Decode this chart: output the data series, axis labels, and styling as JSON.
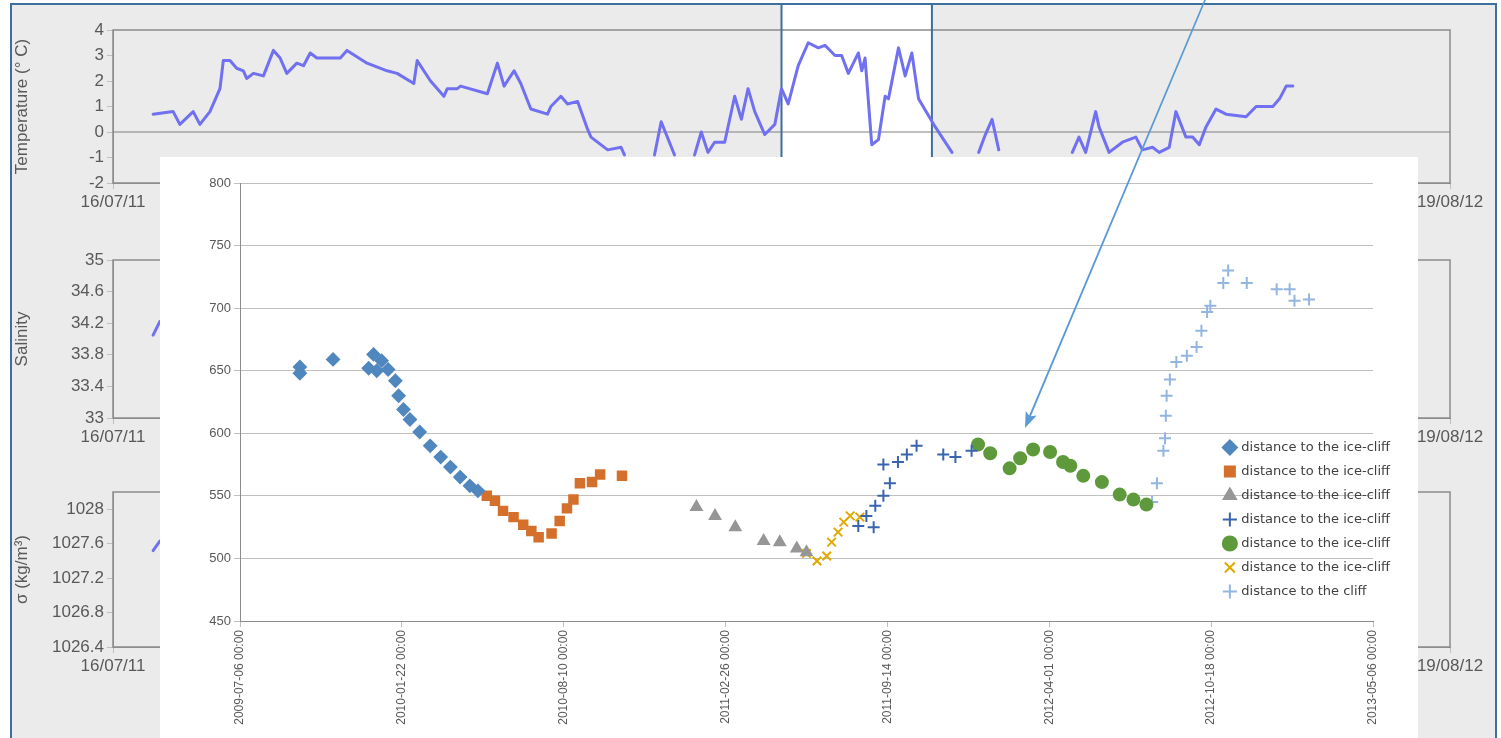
{
  "chart_data": [
    {
      "type": "line",
      "ylabel": "Temperature (° C)",
      "xlim": [
        "2011-07-16",
        "2012-08-19"
      ],
      "xticks": [
        {
          "value": "2011-07-16",
          "label": "16/07/11"
        },
        {
          "value": "2012-08-19",
          "label": "19/08/12"
        }
      ],
      "ylim": [
        -2,
        4
      ],
      "yticks": [
        -2,
        -1,
        0,
        1,
        2,
        3,
        4
      ],
      "grid": false,
      "ref_lines": [
        {
          "axis": "y",
          "value": 0,
          "color": "#808080"
        },
        {
          "axis": "x",
          "value": "2012-02-01",
          "color": "#3c6e9e"
        },
        {
          "axis": "x",
          "value": "2012-03-17",
          "color": "#3c6e9e"
        }
      ],
      "bands": [
        {
          "axis": "x",
          "from": "2012-02-01",
          "to": "2012-03-17",
          "color": "#ffffff"
        }
      ],
      "x": [
        "2011-07-28",
        "2011-08-03",
        "2011-08-05",
        "2011-08-09",
        "2011-08-11",
        "2011-08-14",
        "2011-08-17",
        "2011-08-18",
        "2011-08-20",
        "2011-08-22",
        "2011-08-24",
        "2011-08-25",
        "2011-08-27",
        "2011-08-30",
        "2011-09-02",
        "2011-09-04",
        "2011-09-06",
        "2011-09-09",
        "2011-09-11",
        "2011-09-13",
        "2011-09-15",
        "2011-09-22",
        "2011-09-24",
        "2011-09-30",
        "2011-10-06",
        "2011-10-09",
        "2011-10-14",
        "2011-10-15",
        "2011-10-19",
        "2011-10-23",
        "2011-10-24",
        "2011-10-27",
        "2011-10-28",
        "2011-11-05",
        "2011-11-06",
        "2011-11-08",
        "2011-11-10",
        "2011-11-13",
        "2011-11-15",
        "2011-11-18",
        "2011-11-23",
        "2011-11-24",
        "2011-11-27",
        "2011-11-29",
        "2011-12-02",
        "2011-12-05",
        "2011-12-06",
        "2011-12-11",
        "2011-12-15",
        "2011-12-16",
        "2011-12-21",
        "2011-12-25",
        "2011-12-27",
        "2011-12-31",
        "2012-01-03",
        "2012-01-06",
        "2012-01-08",
        "2012-01-10",
        "2012-01-12",
        "2012-01-15",
        "2012-01-18",
        "2012-01-20",
        "2012-01-22",
        "2012-01-24",
        "2012-01-27",
        "2012-01-30",
        "2012-02-01",
        "2012-02-03",
        "2012-02-06",
        "2012-02-09",
        "2012-02-12",
        "2012-02-14",
        "2012-02-17",
        "2012-02-19",
        "2012-02-21",
        "2012-02-24",
        "2012-02-25",
        "2012-02-26",
        "2012-02-28",
        "2012-03-01",
        "2012-03-03",
        "2012-03-04",
        "2012-03-07",
        "2012-03-09",
        "2012-03-11",
        "2012-03-13",
        "2012-03-18",
        "2012-03-23",
        "2012-03-27",
        "2012-03-31",
        "2012-04-02",
        "2012-04-04",
        "2012-04-06",
        "2012-04-17",
        "2012-04-28",
        "2012-04-30",
        "2012-05-02",
        "2012-05-05",
        "2012-05-06",
        "2012-05-09",
        "2012-05-13",
        "2012-05-17",
        "2012-05-19",
        "2012-05-22",
        "2012-05-24",
        "2012-05-27",
        "2012-05-29",
        "2012-06-01",
        "2012-06-03",
        "2012-06-05",
        "2012-06-07",
        "2012-06-10",
        "2012-06-13",
        "2012-06-19",
        "2012-06-22",
        "2012-06-27",
        "2012-06-29",
        "2012-07-01",
        "2012-07-03"
      ],
      "series": [
        {
          "color": "#7070f0",
          "values": [
            0.7,
            0.8,
            0.3,
            0.8,
            0.3,
            0.8,
            1.7,
            2.8,
            2.8,
            2.5,
            2.4,
            2.1,
            2.3,
            2.2,
            3.2,
            2.9,
            2.3,
            2.7,
            2.6,
            3.1,
            2.9,
            2.9,
            3.2,
            2.7,
            2.4,
            2.3,
            1.9,
            2.8,
            2.0,
            1.4,
            1.7,
            1.7,
            1.8,
            1.5,
            1.9,
            2.7,
            1.8,
            2.4,
            1.9,
            0.9,
            0.7,
            1.0,
            1.4,
            1.1,
            1.2,
            0.1,
            -0.2,
            -0.7,
            -0.6,
            -0.9,
            null,
            -0.9,
            0.4,
            -0.9,
            null,
            -0.9,
            0,
            -0.8,
            -0.4,
            -0.4,
            1.4,
            0.5,
            1.7,
            0.8,
            -0.1,
            0.3,
            1.7,
            1.1,
            2.6,
            3.5,
            3.3,
            3.4,
            3.0,
            3.0,
            2.3,
            3.1,
            2.4,
            2.9,
            -0.5,
            -0.3,
            1.4,
            1.3,
            3.3,
            2.2,
            3.1,
            1.3,
            0.2,
            -0.8,
            null,
            -0.8,
            -0.1,
            0.5,
            -0.7,
            null,
            -0.8,
            -0.2,
            -0.8,
            0.8,
            0.2,
            -0.8,
            -0.4,
            -0.2,
            -0.7,
            -0.6,
            -0.8,
            -0.6,
            0.8,
            -0.2,
            -0.2,
            -0.5,
            0.2,
            0.9,
            0.7,
            0.6,
            1.0,
            1.0,
            1.3,
            1.8,
            1.8
          ]
        }
      ]
    },
    {
      "type": "line",
      "ylabel": "Salinity",
      "xlim": [
        "2011-07-16",
        "2012-08-19"
      ],
      "xticks": [
        {
          "value": "2011-07-16",
          "label": "16/07/11"
        },
        {
          "value": "2012-08-19",
          "label": "19/08/12"
        }
      ],
      "ylim": [
        33,
        35
      ],
      "yticks": [
        33,
        33.4,
        33.8,
        34.2,
        34.6,
        35
      ],
      "grid": false,
      "x": [
        "2011-07-28",
        "2011-07-30"
      ],
      "series": [
        {
          "color": "#7070f0",
          "values": [
            34.05,
            34.22
          ]
        }
      ]
    },
    {
      "type": "line",
      "ylabel": "σ (kg/m³)",
      "xlim": [
        "2011-07-16",
        "2012-08-19"
      ],
      "xticks": [
        {
          "value": "2011-07-16",
          "label": "16/07/11"
        },
        {
          "value": "2012-08-19",
          "label": "19/08/12"
        }
      ],
      "ylim": [
        1026.4,
        1028.2
      ],
      "yticks": [
        1026.4,
        1026.8,
        1027.2,
        1027.6,
        1028
      ],
      "grid": false,
      "x": [
        "2011-07-28",
        "2011-07-30"
      ],
      "series": [
        {
          "color": "#7070f0",
          "values": [
            1027.52,
            1027.63
          ]
        }
      ]
    },
    {
      "type": "scatter",
      "xlim": [
        "2009-07-06",
        "2013-05-06"
      ],
      "xticks": [
        {
          "value": "2009-07-06",
          "label": "2009-07-06 00:00"
        },
        {
          "value": "2010-01-22",
          "label": "2010-01-22 00:00"
        },
        {
          "value": "2010-08-10",
          "label": "2010-08-10 00:00"
        },
        {
          "value": "2011-02-26",
          "label": "2011-02-26 00:00"
        },
        {
          "value": "2011-09-14",
          "label": "2011-09-14 00:00"
        },
        {
          "value": "2012-04-01",
          "label": "2012-04-01 00:00"
        },
        {
          "value": "2012-10-18",
          "label": "2012-10-18 00:00"
        },
        {
          "value": "2013-05-06",
          "label": "2013-05-06 00:00"
        }
      ],
      "ylim": [
        450,
        800
      ],
      "yticks": [
        450,
        500,
        550,
        600,
        650,
        700,
        750,
        800
      ],
      "grid": "y",
      "legend": "bottom right",
      "series": [
        {
          "name": "distance to the ice-cliff",
          "color": "#4f87be",
          "marker": "diamond",
          "x": [
            "2009-09-18",
            "2009-09-18",
            "2009-10-29",
            "2009-12-12",
            "2009-12-18",
            "2009-12-22",
            "2009-12-28",
            "2010-01-05",
            "2010-01-14",
            "2010-01-18",
            "2010-01-24",
            "2010-02-01",
            "2010-02-13",
            "2010-02-26",
            "2010-03-11",
            "2010-03-23",
            "2010-04-04",
            "2010-04-16",
            "2010-04-26"
          ],
          "values": [
            653,
            648,
            659,
            652,
            663,
            650,
            658,
            651,
            642,
            630,
            619,
            611,
            601,
            590,
            581,
            573,
            565,
            558,
            554
          ]
        },
        {
          "name": "distance to the ice-cliff",
          "color": "#d4702c",
          "marker": "square",
          "x": [
            "2010-05-07",
            "2010-05-17",
            "2010-05-27",
            "2010-06-09",
            "2010-06-21",
            "2010-07-01",
            "2010-07-10",
            "2010-07-26",
            "2010-08-05",
            "2010-08-14",
            "2010-08-22",
            "2010-08-30",
            "2010-09-14",
            "2010-09-24",
            "2010-10-21"
          ],
          "values": [
            550,
            546,
            538,
            533,
            527,
            522,
            517,
            520,
            530,
            540,
            547,
            560,
            561,
            567,
            566
          ]
        },
        {
          "name": "distance to the ice-cliff",
          "color": "#969696",
          "marker": "triangle",
          "x": [
            "2011-01-21",
            "2011-02-13",
            "2011-03-10",
            "2011-04-14",
            "2011-05-04",
            "2011-05-25",
            "2011-06-06"
          ],
          "values": [
            541,
            534,
            525,
            514,
            513,
            508,
            505
          ]
        },
        {
          "name": "distance to the ice-cliff",
          "color": "#3a64ae",
          "marker": "cross",
          "x": [
            "2011-08-09",
            "2011-08-19",
            "2011-08-28",
            "2011-08-30",
            "2011-09-09",
            "2011-09-09",
            "2011-09-17",
            "2011-09-27",
            "2011-10-08",
            "2011-10-20",
            "2011-11-22",
            "2011-12-07",
            "2011-12-27"
          ],
          "values": [
            526,
            534,
            525,
            542,
            550,
            575,
            560,
            577,
            583,
            590,
            583,
            581,
            586
          ]
        },
        {
          "name": "distance to the ice-cliff",
          "color": "#5e9a3c",
          "marker": "circle",
          "x": [
            "2012-01-04",
            "2012-01-19",
            "2012-02-12",
            "2012-02-25",
            "2012-03-12",
            "2012-04-02",
            "2012-04-18",
            "2012-04-27",
            "2012-05-13",
            "2012-06-05",
            "2012-06-27",
            "2012-07-14",
            "2012-07-30"
          ],
          "values": [
            591,
            584,
            572,
            580,
            587,
            585,
            577,
            574,
            566,
            561,
            551,
            547,
            543
          ]
        },
        {
          "name": "distance to the ice-cliff",
          "color": "#e1a800",
          "marker": "x",
          "x": [
            "2011-06-06",
            "2011-06-19",
            "2011-07-01",
            "2011-07-07",
            "2011-07-15",
            "2011-07-22",
            "2011-07-30",
            "2011-08-11"
          ],
          "values": [
            504,
            498,
            502,
            513,
            521,
            529,
            534,
            533
          ]
        },
        {
          "name": "distance to the cliff",
          "color": "#93b6e0",
          "marker": "cross",
          "x": [
            "2012-08-06",
            "2012-08-12",
            "2012-08-20",
            "2012-08-22",
            "2012-08-23",
            "2012-08-24",
            "2012-08-28",
            "2012-09-05",
            "2012-09-18",
            "2012-09-30",
            "2012-10-06",
            "2012-10-13",
            "2012-10-17",
            "2012-11-02",
            "2012-11-08",
            "2012-12-01",
            "2013-01-07",
            "2013-01-23",
            "2013-01-29",
            "2013-02-16"
          ],
          "values": [
            545,
            560,
            586,
            596,
            614,
            630,
            643,
            657,
            662,
            669,
            682,
            697,
            702,
            720,
            730,
            720,
            715,
            715,
            706,
            707
          ]
        }
      ]
    }
  ]
}
